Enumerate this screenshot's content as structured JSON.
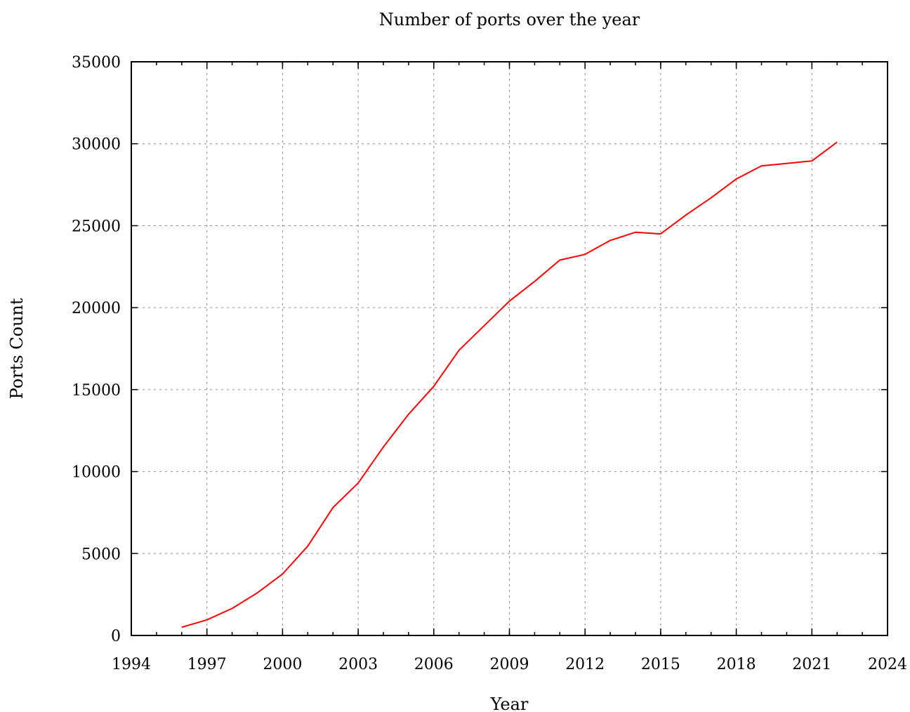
{
  "chart_data": {
    "type": "line",
    "title": "Number of ports over the year",
    "xlabel": "Year",
    "ylabel": "Ports Count",
    "xlim": [
      1994,
      2024
    ],
    "ylim": [
      0,
      35000
    ],
    "x_ticks": [
      1994,
      1997,
      2000,
      2003,
      2006,
      2009,
      2012,
      2015,
      2018,
      2021,
      2024
    ],
    "x_minor_step": 1,
    "y_ticks": [
      0,
      5000,
      10000,
      15000,
      20000,
      25000,
      30000,
      35000
    ],
    "grid": true,
    "legend": false,
    "series": [
      {
        "color": "#ff0000",
        "x": [
          1996,
          1997,
          1998,
          1999,
          2000,
          2001,
          2002,
          2003,
          2004,
          2005,
          2006,
          2007,
          2008,
          2009,
          2010,
          2011,
          2012,
          2013,
          2014,
          2015,
          2016,
          2017,
          2018,
          2019,
          2020,
          2021,
          2022
        ],
        "y": [
          500,
          950,
          1650,
          2600,
          3750,
          5450,
          7800,
          9300,
          11500,
          13500,
          15200,
          17400,
          18900,
          20400,
          21600,
          22900,
          23250,
          24100,
          24600,
          24500,
          25650,
          26700,
          27850,
          28650,
          28800,
          28950,
          30100
        ]
      }
    ]
  }
}
